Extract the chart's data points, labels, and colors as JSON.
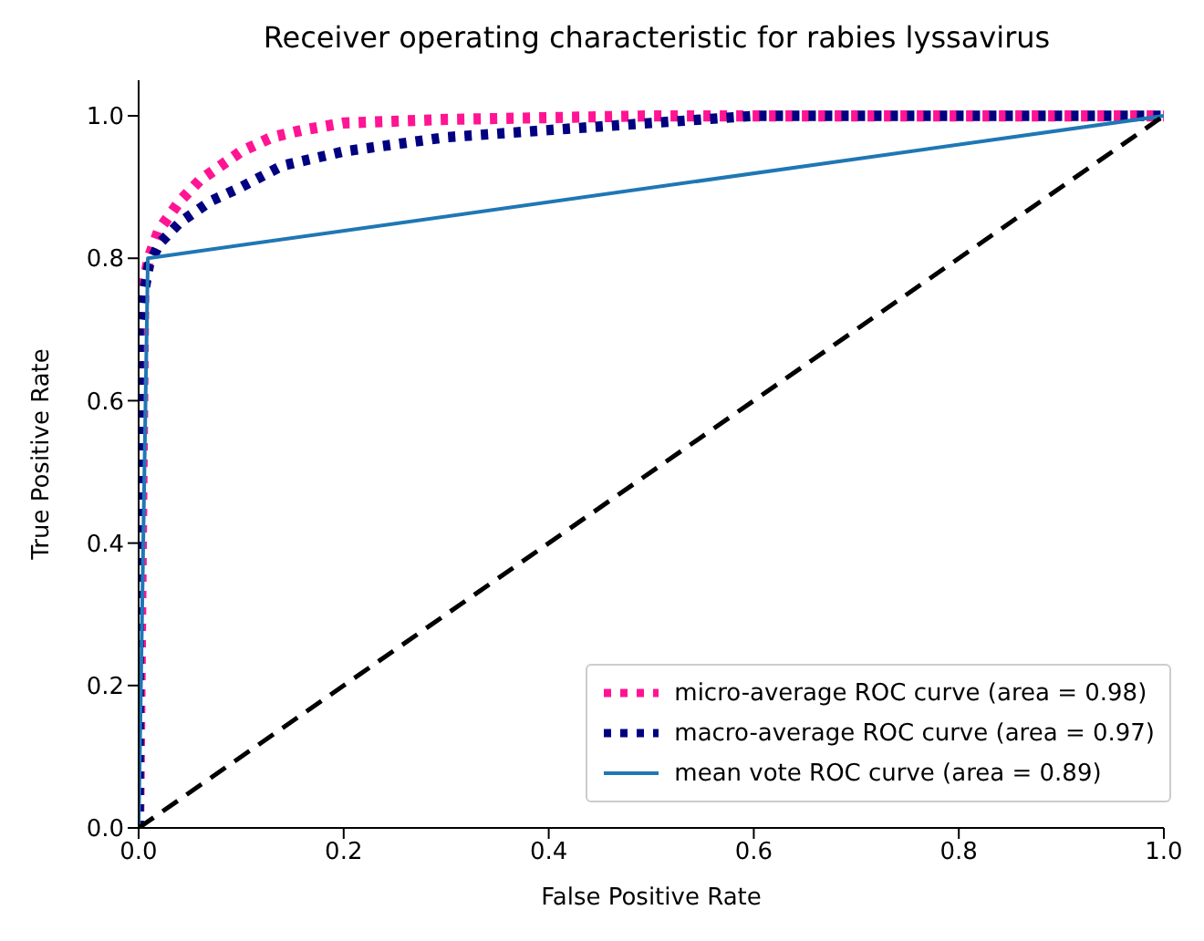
{
  "chart_data": {
    "type": "line",
    "title": "Receiver operating characteristic for rabies lyssavirus",
    "xlabel": "False Positive Rate",
    "ylabel": "True Positive Rate",
    "xlim": [
      0,
      1
    ],
    "ylim": [
      0,
      1.05
    ],
    "xticks": [
      {
        "value": 0,
        "label": "0.0"
      },
      {
        "value": 0.2,
        "label": "0.2"
      },
      {
        "value": 0.4,
        "label": "0.4"
      },
      {
        "value": 0.6,
        "label": "0.6"
      },
      {
        "value": 0.8,
        "label": "0.8"
      },
      {
        "value": 1,
        "label": "1.0"
      }
    ],
    "yticks": [
      {
        "value": 0,
        "label": "0.0"
      },
      {
        "value": 0.2,
        "label": "0.2"
      },
      {
        "value": 0.4,
        "label": "0.4"
      },
      {
        "value": 0.6,
        "label": "0.6"
      },
      {
        "value": 0.8,
        "label": "0.8"
      },
      {
        "value": 1,
        "label": "1.0"
      }
    ],
    "grid": false,
    "legend": "bottom right",
    "marker": "none",
    "series": [
      {
        "name": "micro-average ROC curve (area = 0.98)",
        "color": "#ff1493",
        "line_style": "dotted",
        "x": [
          0,
          0.005,
          0.01,
          0.02,
          0.04,
          0.06,
          0.08,
          0.1,
          0.13,
          0.16,
          0.2,
          0.3,
          0.5,
          1
        ],
        "values": [
          0,
          0.76,
          0.8,
          0.84,
          0.88,
          0.91,
          0.93,
          0.95,
          0.97,
          0.98,
          0.99,
          0.995,
          1,
          1
        ]
      },
      {
        "name": "macro-average ROC curve (area = 0.97)",
        "color": "#000080",
        "line_style": "dotted",
        "x": [
          0,
          0,
          0.005,
          0.01,
          0.02,
          0.04,
          0.07,
          0.1,
          0.14,
          0.2,
          0.3,
          0.4,
          0.5,
          0.6,
          1
        ],
        "values": [
          0,
          0.7,
          0.75,
          0.79,
          0.82,
          0.85,
          0.88,
          0.9,
          0.93,
          0.95,
          0.97,
          0.98,
          0.99,
          1,
          1
        ]
      },
      {
        "name": "mean vote ROC curve (area = 0.89)",
        "color": "#1f77b4",
        "line_style": "solid",
        "x": [
          0,
          0.009,
          1
        ],
        "values": [
          0,
          0.8,
          1
        ]
      },
      {
        "color": "#000000",
        "line_style": "dashed",
        "x": [
          0,
          1
        ],
        "values": [
          0,
          1
        ]
      }
    ]
  }
}
